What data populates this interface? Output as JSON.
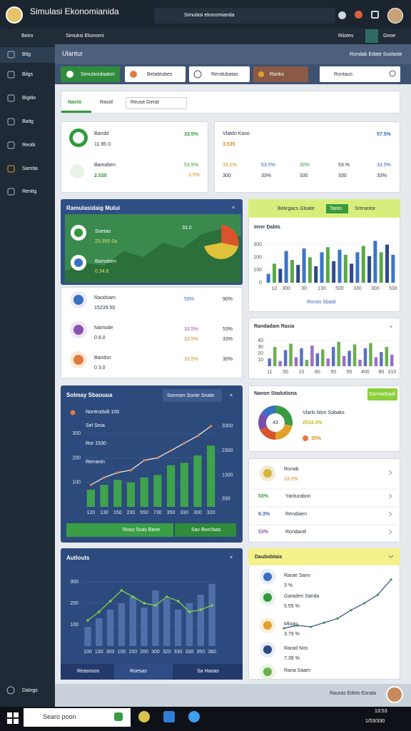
{
  "window": {
    "title": "Simulasi Ekonomianida",
    "search": "Simulasi ekonomianda"
  },
  "menu": {
    "items": [
      "Beiro",
      "Simuksi Ekonomi"
    ],
    "right": [
      "Riiotes",
      "Geoe"
    ]
  },
  "sidebar": {
    "items": [
      "Bitg",
      "Bilgs",
      "Bigitio",
      "Baitg",
      "Reoib",
      "Samtia",
      "Rentig"
    ],
    "footer": "Dalngs"
  },
  "header": {
    "title": "Ulantur",
    "link": "Rondab Edate Suslaste"
  },
  "toolbar": {
    "buttons": [
      "Simulasidaaton",
      "Betabtubes",
      "Rendubatas",
      "Ranks"
    ],
    "search": "Rontaus"
  },
  "tabs": [
    "Nacto",
    "Rasid",
    "Reuse Gerat"
  ],
  "kpis": [
    {
      "name": "Bandd",
      "value": "11.95 0",
      "pct": "33.5%"
    },
    {
      "name": "Bamoben",
      "value": "2.535",
      "pct": "53.5%",
      "sub": "3.5%"
    }
  ],
  "summary": {
    "name": "Vlatdo Kaso",
    "value": "3.535",
    "pct": "57.5%",
    "row1": [
      "33.5%",
      "53.5%",
      "30%",
      "53.%",
      "33.5%"
    ],
    "row2": [
      "300",
      "33%",
      "330",
      "330",
      "33%"
    ]
  },
  "sim": {
    "title": "Ramulasidaig Mului",
    "items": [
      {
        "name": "Soetao",
        "value": "23.355 0a",
        "badge": "33.0"
      },
      {
        "name": "Bamoben",
        "value": "0.34.6"
      }
    ],
    "area": [
      20,
      35,
      30,
      55,
      45,
      70,
      60,
      85,
      95,
      80
    ]
  },
  "list1": [
    {
      "name": "Raodsam",
      "value": "15239.50",
      "pct": "53%",
      "pct2": "90%"
    },
    {
      "name": "Namode",
      "value": "0 8.0",
      "pct": "33.5%",
      "pct2": "53%",
      "sub": "33.5%",
      "sub2": "33%"
    },
    {
      "name": "Bandsn",
      "value": "0 3.0",
      "pct": "33.5%",
      "pct2": "30%"
    }
  ],
  "list2": [
    {
      "name": "Ronab",
      "sub": "33.0%"
    },
    {
      "pct": "53%",
      "name": "Yanturabon"
    },
    {
      "pct": "6.3%",
      "name": "Rendaien"
    },
    {
      "pct": "53%",
      "name": "Rondaraf"
    }
  ],
  "yellow_card": {
    "title": "Daubobtaia",
    "items": [
      {
        "name": "Rarae Sanv",
        "sub": "3 %"
      },
      {
        "name": "Garaden Sanda",
        "sub": "5.55 %"
      },
      {
        "name": "Mloao",
        "sub": "3.79 %"
      },
      {
        "name": "Rarad Nos",
        "sub": "7.39 %"
      },
      {
        "name": "Rana Saam"
      }
    ],
    "trend": [
      12,
      16,
      14,
      20,
      26,
      38,
      48,
      60,
      82
    ]
  },
  "footer": "Rauras Edeto Exrata",
  "taskbar": {
    "search": "Searo poon",
    "time": "13:53",
    "date": "1/53/330"
  },
  "chart_data": [
    {
      "type": "bar",
      "title": "Inrer Dabts",
      "header": [
        "Bekrgacs Gloate",
        "Tanto",
        "Srerantor"
      ],
      "footer": "Rorsio Sbatd",
      "categories": [
        null,
        "10",
        null,
        "300",
        null,
        null,
        "30",
        null,
        null,
        "130",
        null,
        null,
        "500",
        null,
        null,
        "330",
        null,
        null,
        "300",
        null,
        null,
        "530"
      ],
      "values": [
        70,
        150,
        110,
        250,
        180,
        140,
        270,
        200,
        130,
        240,
        280,
        170,
        260,
        220,
        150,
        240,
        290,
        210,
        330,
        240,
        300,
        220
      ],
      "colors": [
        "#3b73c9",
        "#5aa845",
        "#2e4a86"
      ],
      "ylim": [
        0,
        400
      ],
      "yticks": [
        0,
        100,
        200,
        300
      ],
      "grid": true
    },
    {
      "type": "bar",
      "title": "Randadam Rasia",
      "categories": [
        "11",
        null,
        null,
        "50",
        null,
        null,
        "10",
        null,
        null,
        "60",
        null,
        null,
        "50",
        null,
        null,
        "55",
        null,
        null,
        "400",
        null,
        null,
        "80",
        null,
        "310"
      ],
      "values": [
        12,
        30,
        8,
        25,
        35,
        14,
        28,
        10,
        32,
        20,
        26,
        12,
        30,
        38,
        16,
        24,
        34,
        10,
        28,
        36,
        14,
        22,
        30,
        18
      ],
      "colors": [
        "#5a6fc4",
        "#6ab04c",
        "#9b6fc7"
      ],
      "ylim": [
        0,
        50
      ],
      "yticks": [
        10,
        20,
        30,
        40
      ],
      "grid": true
    },
    {
      "type": "combo",
      "title": "Solmay Sbaouua",
      "button": "Sonnsm Sonte Snate",
      "annotations": [
        "Nontrodsilt 100",
        "Sel Sroa",
        "Ror 1530",
        "Rerranin"
      ],
      "actions": [
        "Roso Ssas Bane",
        "Sav Borcfaas"
      ],
      "categories": [
        "120",
        "130",
        "150",
        "230",
        "550",
        "730",
        "350",
        "330",
        "300",
        "320"
      ],
      "series": [
        {
          "mark": "bar",
          "color": "#3fa34d",
          "values": [
            70,
            90,
            110,
            100,
            120,
            130,
            170,
            180,
            210,
            250
          ]
        },
        {
          "mark": "line",
          "axis": "y2",
          "color": "#f0e6dc",
          "values": [
            900,
            1200,
            1400,
            1500,
            1900,
            2000,
            2300,
            2600,
            2900,
            3300
          ]
        }
      ],
      "ylim": [
        0,
        350
      ],
      "yticks": [
        100,
        200,
        300
      ],
      "y2lim": [
        0,
        3500
      ],
      "y2ticks": [
        330,
        1300,
        2300,
        3300
      ],
      "grid": true
    },
    {
      "type": "combo",
      "title": "Autlouts",
      "tabs": [
        "Reasnsos",
        "Roesas",
        "Sa Haoas"
      ],
      "categories": [
        "100",
        "130",
        "300",
        "100",
        "150",
        "200",
        "300",
        "320",
        "330",
        "330",
        "350",
        "360"
      ],
      "series": [
        {
          "mark": "bar",
          "color": "#4f6fa8",
          "values": [
            90,
            130,
            170,
            200,
            230,
            180,
            260,
            220,
            170,
            200,
            240,
            290
          ]
        },
        {
          "mark": "line",
          "color": "#7ccf4a",
          "values": [
            120,
            160,
            210,
            260,
            230,
            200,
            190,
            230,
            210,
            160,
            170,
            190
          ]
        }
      ],
      "ylim": [
        0,
        350
      ],
      "yticks": [
        100,
        200,
        300
      ],
      "grid": true
    },
    {
      "type": "pie",
      "title": "Nanon Stadutiona",
      "button": "Sannadsadi",
      "center": "43",
      "annotations": [
        "Vlarlo Mon Sobaks",
        "2533.3%",
        "35%"
      ],
      "values": [
        28,
        22,
        18,
        17,
        15
      ],
      "colors": [
        "#3a9a44",
        "#e0a02a",
        "#d9532c",
        "#7a4fb0",
        "#3b6fc4"
      ]
    }
  ]
}
